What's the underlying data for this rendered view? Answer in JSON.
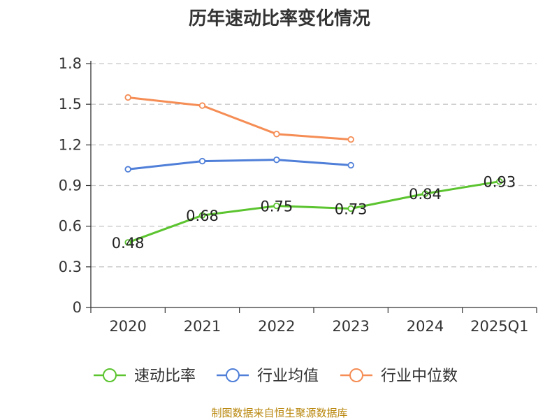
{
  "chart_data": {
    "type": "line",
    "title": "历年速动比率变化情况",
    "categories": [
      "2020",
      "2021",
      "2022",
      "2023",
      "2024",
      "2025Q1"
    ],
    "ylim": [
      0,
      1.8
    ],
    "yticks": [
      "0",
      "0.3",
      "0.6",
      "0.9",
      "1.2",
      "1.5",
      "1.8"
    ],
    "grid": true,
    "legend_position": "bottom",
    "series": [
      {
        "name": "速动比率",
        "color": "#5bc42f",
        "values": [
          0.48,
          0.68,
          0.75,
          0.73,
          0.84,
          0.93
        ],
        "labels": [
          "0.48",
          "0.68",
          "0.75",
          "0.73",
          "0.84",
          "0.93"
        ],
        "show_labels": true
      },
      {
        "name": "行业均值",
        "color": "#4f7fd8",
        "values": [
          1.02,
          1.08,
          1.09,
          1.05,
          null,
          null
        ],
        "show_labels": false
      },
      {
        "name": "行业中位数",
        "color": "#f58d55",
        "values": [
          1.55,
          1.49,
          1.28,
          1.24,
          null,
          null
        ],
        "show_labels": false
      }
    ]
  },
  "source": "制图数据来自恒生聚源数据库"
}
